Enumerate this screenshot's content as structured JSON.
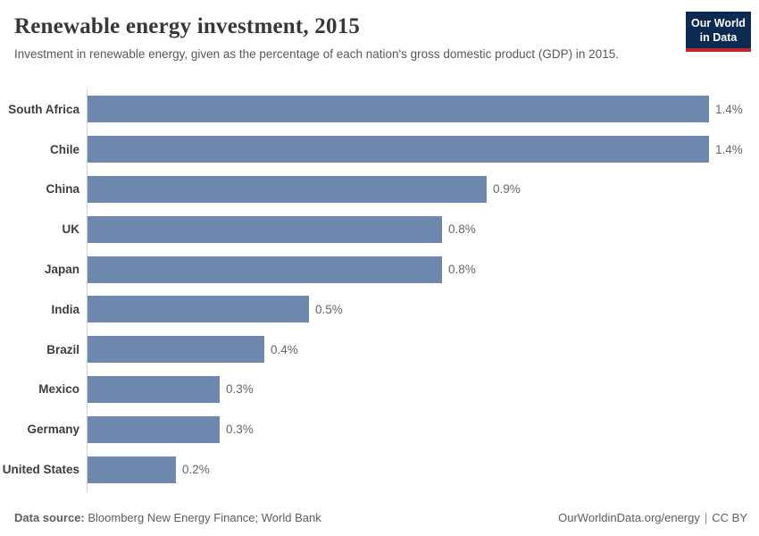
{
  "header": {
    "title": "Renewable energy investment, 2015",
    "subtitle": "Investment in renewable energy, given as the percentage of each nation's gross domestic product (GDP) in 2015.",
    "logo_line1": "Our World",
    "logo_line2": "in Data"
  },
  "chart_data": {
    "type": "bar",
    "orientation": "horizontal",
    "title": "Renewable energy investment, 2015",
    "xlabel": "",
    "ylabel": "",
    "categories": [
      "South Africa",
      "Chile",
      "China",
      "UK",
      "Japan",
      "India",
      "Brazil",
      "Mexico",
      "Germany",
      "United States"
    ],
    "values": [
      1.4,
      1.4,
      0.9,
      0.8,
      0.8,
      0.5,
      0.4,
      0.3,
      0.3,
      0.2
    ],
    "value_labels": [
      "1.4%",
      "1.4%",
      "0.9%",
      "0.8%",
      "0.8%",
      "0.5%",
      "0.4%",
      "0.3%",
      "0.3%",
      "0.2%"
    ],
    "unit": "% of GDP",
    "xlim": [
      0,
      1.4
    ],
    "grid": false,
    "legend": false,
    "bar_color": "#6d87ad"
  },
  "footer": {
    "datasource_label": "Data source:",
    "datasource_text": "Bloomberg New Energy Finance; World Bank",
    "link": "OurWorldinData.org/energy",
    "separator": "|",
    "license": "CC BY"
  },
  "colors": {
    "bar": "#6d87ad",
    "axis_line": "#d3d4d5",
    "title_text": "#383838",
    "subtitle_text": "#575757",
    "category_label": "#3d3d3d",
    "value_label": "#666666",
    "footer_text": "#5e5e5e",
    "logo_background": "#0d2a52",
    "logo_stripe": "#c0282d"
  }
}
